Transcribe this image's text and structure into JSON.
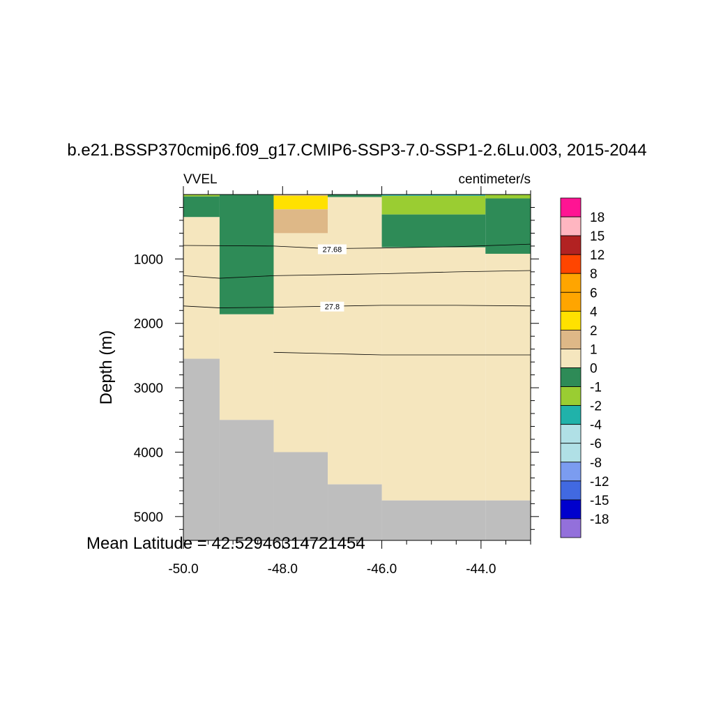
{
  "chart_data": {
    "type": "heatmap",
    "title": "b.e21.BSSP370cmip6.f09_g17.CMIP6-SSP3-7.0-SSP1-2.6Lu.003, 2015-2044",
    "variable_label": "VVEL",
    "units_label": "centimeter/s",
    "ylabel": "Depth (m)",
    "xlabel": "",
    "footer": "Mean Latitude = 42.52946314721454",
    "xlim": [
      -50.0,
      -43.0
    ],
    "ylim": [
      5370,
      0
    ],
    "x_ticks": [
      -50.0,
      -48.0,
      -46.0,
      -44.0
    ],
    "x_tick_labels": [
      "-50.0",
      "-48.0",
      "-46.0",
      "-44.0"
    ],
    "y_ticks": [
      1000,
      2000,
      3000,
      4000,
      5000
    ],
    "y_tick_labels": [
      "1000",
      "2000",
      "3000",
      "4000",
      "5000"
    ],
    "colorbar": {
      "labels": [
        "18",
        "15",
        "12",
        "8",
        "6",
        "4",
        "2",
        "1",
        "0",
        "-1",
        "-2",
        "-4",
        "-6",
        "-8",
        "-12",
        "-15",
        "-18"
      ],
      "colors": [
        "#ff1493",
        "#ffb6c1",
        "#b22222",
        "#ff4500",
        "#ffa500",
        "#ffa500",
        "#ffe100",
        "#deb887",
        "#f5e6be",
        "#2e8b57",
        "#9acd32",
        "#20b2aa",
        "#b0e0e6",
        "#b0e0e6",
        "#7b9cf0",
        "#4169e1",
        "#0000cd",
        "#9370db"
      ]
    },
    "land_color": "#bebebe",
    "columns": [
      {
        "x0": -50.0,
        "x1": -49.27,
        "bottom": 2550,
        "cells": [
          {
            "d0": 0,
            "d1": 30,
            "value": -1.5
          },
          {
            "d0": 30,
            "d1": 350,
            "value": -0.5
          },
          {
            "d0": 350,
            "d1": 2550,
            "value": 0.5
          }
        ]
      },
      {
        "x0": -49.27,
        "x1": -48.18,
        "bottom": 3500,
        "cells": [
          {
            "d0": 0,
            "d1": 1860,
            "value": -0.5
          },
          {
            "d0": 1860,
            "d1": 3500,
            "value": 0.5
          }
        ]
      },
      {
        "x0": -48.18,
        "x1": -47.09,
        "bottom": 4000,
        "cells": [
          {
            "d0": 0,
            "d1": 20,
            "value": 1.5
          },
          {
            "d0": 20,
            "d1": 230,
            "value": 3
          },
          {
            "d0": 230,
            "d1": 600,
            "value": 1.5
          },
          {
            "d0": 600,
            "d1": 4000,
            "value": 0.5
          }
        ]
      },
      {
        "x0": -47.09,
        "x1": -46.0,
        "bottom": 4500,
        "cells": [
          {
            "d0": 0,
            "d1": 40,
            "value": -0.5
          },
          {
            "d0": 40,
            "d1": 4500,
            "value": 0.5
          }
        ]
      },
      {
        "x0": -46.0,
        "x1": -43.91,
        "bottom": 4750,
        "cells": [
          {
            "d0": 0,
            "d1": 20,
            "value": -3
          },
          {
            "d0": 20,
            "d1": 310,
            "value": -1.5
          },
          {
            "d0": 310,
            "d1": 820,
            "value": -0.5
          },
          {
            "d0": 820,
            "d1": 4750,
            "value": 0.5
          }
        ]
      },
      {
        "x0": -43.91,
        "x1": -43.0,
        "bottom": 4750,
        "cells": [
          {
            "d0": 0,
            "d1": 60,
            "value": -1.5
          },
          {
            "d0": 60,
            "d1": 920,
            "value": -0.5
          },
          {
            "d0": 920,
            "d1": 4750,
            "value": 0.5
          }
        ]
      }
    ],
    "contours": [
      {
        "label": "27.68",
        "label_at": [
          -47.0,
          850
        ],
        "points": [
          [
            -50.0,
            790
          ],
          [
            -48.18,
            800
          ],
          [
            -47.09,
            840
          ],
          [
            -46.0,
            830
          ],
          [
            -44.5,
            810
          ],
          [
            -43.0,
            770
          ]
        ]
      },
      {
        "label": "",
        "points": [
          [
            -50.0,
            1260
          ],
          [
            -49.27,
            1300
          ],
          [
            -48.18,
            1260
          ],
          [
            -46.0,
            1230
          ],
          [
            -44.5,
            1200
          ],
          [
            -43.0,
            1180
          ]
        ]
      },
      {
        "label": "27.8",
        "label_at": [
          -47.0,
          1740
        ],
        "points": [
          [
            -50.0,
            1730
          ],
          [
            -49.27,
            1760
          ],
          [
            -48.18,
            1750
          ],
          [
            -46.0,
            1720
          ],
          [
            -44.5,
            1720
          ],
          [
            -43.0,
            1730
          ]
        ]
      },
      {
        "label": "",
        "points": [
          [
            -48.18,
            2450
          ],
          [
            -47.09,
            2470
          ],
          [
            -46.0,
            2490
          ],
          [
            -44.5,
            2490
          ],
          [
            -43.0,
            2490
          ]
        ]
      }
    ]
  }
}
